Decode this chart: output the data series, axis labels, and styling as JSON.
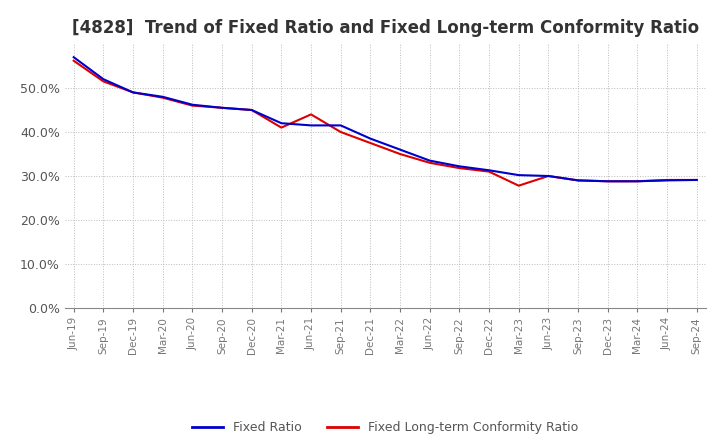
{
  "title": "[4828]  Trend of Fixed Ratio and Fixed Long-term Conformity Ratio",
  "x_labels": [
    "Jun-19",
    "Sep-19",
    "Dec-19",
    "Mar-20",
    "Jun-20",
    "Sep-20",
    "Dec-20",
    "Mar-21",
    "Jun-21",
    "Sep-21",
    "Dec-21",
    "Mar-22",
    "Jun-22",
    "Sep-22",
    "Dec-22",
    "Mar-23",
    "Jun-23",
    "Sep-23",
    "Dec-23",
    "Mar-24",
    "Jun-24",
    "Sep-24"
  ],
  "fixed_ratio": [
    0.57,
    0.52,
    0.49,
    0.48,
    0.462,
    0.455,
    0.45,
    0.42,
    0.415,
    0.415,
    0.385,
    0.36,
    0.335,
    0.322,
    0.313,
    0.302,
    0.3,
    0.29,
    0.288,
    0.288,
    0.29,
    0.291
  ],
  "fixed_lt_ratio": [
    0.562,
    0.515,
    0.49,
    0.478,
    0.46,
    0.455,
    0.45,
    0.41,
    0.44,
    0.4,
    0.375,
    0.35,
    0.33,
    0.318,
    0.31,
    0.278,
    0.3,
    0.29,
    0.288,
    0.288,
    0.291,
    0.291
  ],
  "fixed_ratio_color": "#0000cc",
  "fixed_lt_ratio_color": "#dd0000",
  "ylim": [
    0.0,
    0.6
  ],
  "yticks": [
    0.0,
    0.1,
    0.2,
    0.3,
    0.4,
    0.5
  ],
  "background_color": "#ffffff",
  "grid_color": "#bbbbbb",
  "title_fontsize": 12,
  "legend_labels": [
    "Fixed Ratio",
    "Fixed Long-term Conformity Ratio"
  ],
  "figsize": [
    7.2,
    4.4
  ],
  "dpi": 100
}
